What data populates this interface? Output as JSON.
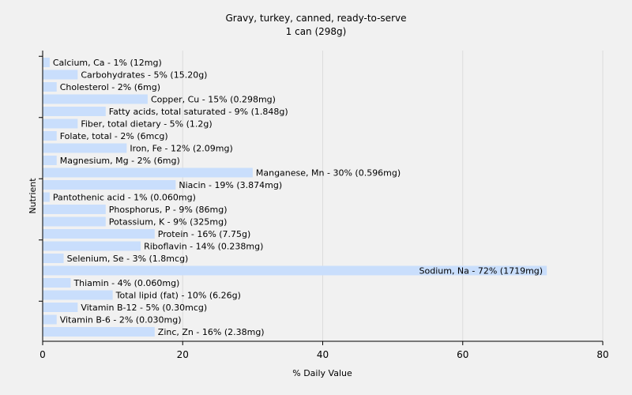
{
  "chart_data": {
    "type": "bar",
    "orientation": "horizontal",
    "title": "Gravy, turkey, canned, ready-to-serve",
    "subtitle": "1 can (298g)",
    "xlabel": "% Daily Value",
    "ylabel": "Nutrient",
    "xlim": [
      0,
      80
    ],
    "xticks": [
      0,
      20,
      40,
      60,
      80
    ],
    "grid": true,
    "bar_color": "#c9defc",
    "categories": [
      "Calcium, Ca",
      "Carbohydrates",
      "Cholesterol",
      "Copper, Cu",
      "Fatty acids, total saturated",
      "Fiber, total dietary",
      "Folate, total",
      "Iron, Fe",
      "Magnesium, Mg",
      "Manganese, Mn",
      "Niacin",
      "Pantothenic acid",
      "Phosphorus, P",
      "Potassium, K",
      "Protein",
      "Riboflavin",
      "Selenium, Se",
      "Sodium, Na",
      "Thiamin",
      "Total lipid (fat)",
      "Vitamin B-12",
      "Vitamin B-6",
      "Zinc, Zn"
    ],
    "values": [
      1,
      5,
      2,
      15,
      9,
      5,
      2,
      12,
      2,
      30,
      19,
      1,
      9,
      9,
      16,
      14,
      3,
      72,
      4,
      10,
      5,
      2,
      16
    ],
    "labels": [
      "Calcium, Ca - 1% (12mg)",
      "Carbohydrates - 5% (15.20g)",
      "Cholesterol - 2% (6mg)",
      "Copper, Cu - 15% (0.298mg)",
      "Fatty acids, total saturated - 9% (1.848g)",
      "Fiber, total dietary - 5% (1.2g)",
      "Folate, total - 2% (6mcg)",
      "Iron, Fe - 12% (2.09mg)",
      "Magnesium, Mg - 2% (6mg)",
      "Manganese, Mn - 30% (0.596mg)",
      "Niacin - 19% (3.874mg)",
      "Pantothenic acid - 1% (0.060mg)",
      "Phosphorus, P - 9% (86mg)",
      "Potassium, K - 9% (325mg)",
      "Protein - 16% (7.75g)",
      "Riboflavin - 14% (0.238mg)",
      "Selenium, Se - 3% (1.8mcg)",
      "Sodium, Na - 72% (1719mg)",
      "Thiamin - 4% (0.060mg)",
      "Total lipid (fat) - 10% (6.26g)",
      "Vitamin B-12 - 5% (0.30mcg)",
      "Vitamin B-6 - 2% (0.030mg)",
      "Zinc, Zn - 16% (2.38mg)"
    ]
  }
}
